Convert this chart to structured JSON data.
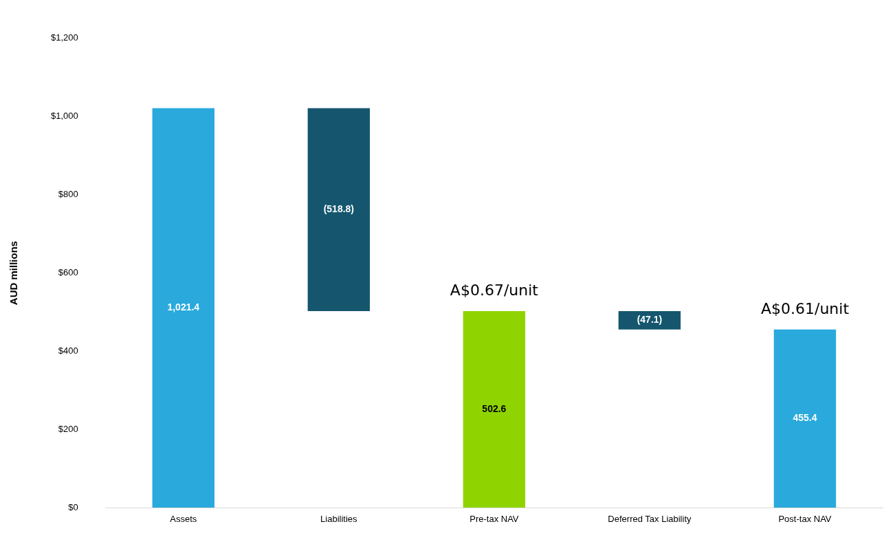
{
  "chart_data": {
    "type": "bar",
    "ylabel": "AUD millions",
    "categories": [
      "Assets",
      "Liabilities",
      "Pre-tax NAV",
      "Deferred Tax Liability",
      "Post-tax NAV"
    ],
    "values": [
      1021.4,
      -518.8,
      502.6,
      -47.1,
      455.4
    ],
    "base": [
      0,
      1021.4,
      0,
      502.6,
      0
    ],
    "colors": [
      "#29a9dc",
      "#15566e",
      "#8fd400",
      "#15566e",
      "#29a9dc"
    ],
    "value_labels": [
      "1,021.4",
      "(518.8)",
      "502.6",
      "(47.1)",
      "455.4"
    ],
    "annotations": [
      {
        "text": "A$0.67/unit",
        "x": "Pre-tax NAV",
        "y": 502.6
      },
      {
        "text": "A$0.61/unit",
        "x": "Post-tax NAV",
        "y": 455.4
      }
    ],
    "ylim": [
      0,
      1200
    ],
    "yticks": [
      {
        "value": 0,
        "label": "$0"
      },
      {
        "value": 200,
        "label": "$200"
      },
      {
        "value": 400,
        "label": "$400"
      },
      {
        "value": 600,
        "label": "$600"
      },
      {
        "value": 800,
        "label": "$800"
      },
      {
        "value": 1000,
        "label": "$1,000"
      },
      {
        "value": 1200,
        "label": "$1,200"
      }
    ],
    "grid": false,
    "legend": false
  }
}
